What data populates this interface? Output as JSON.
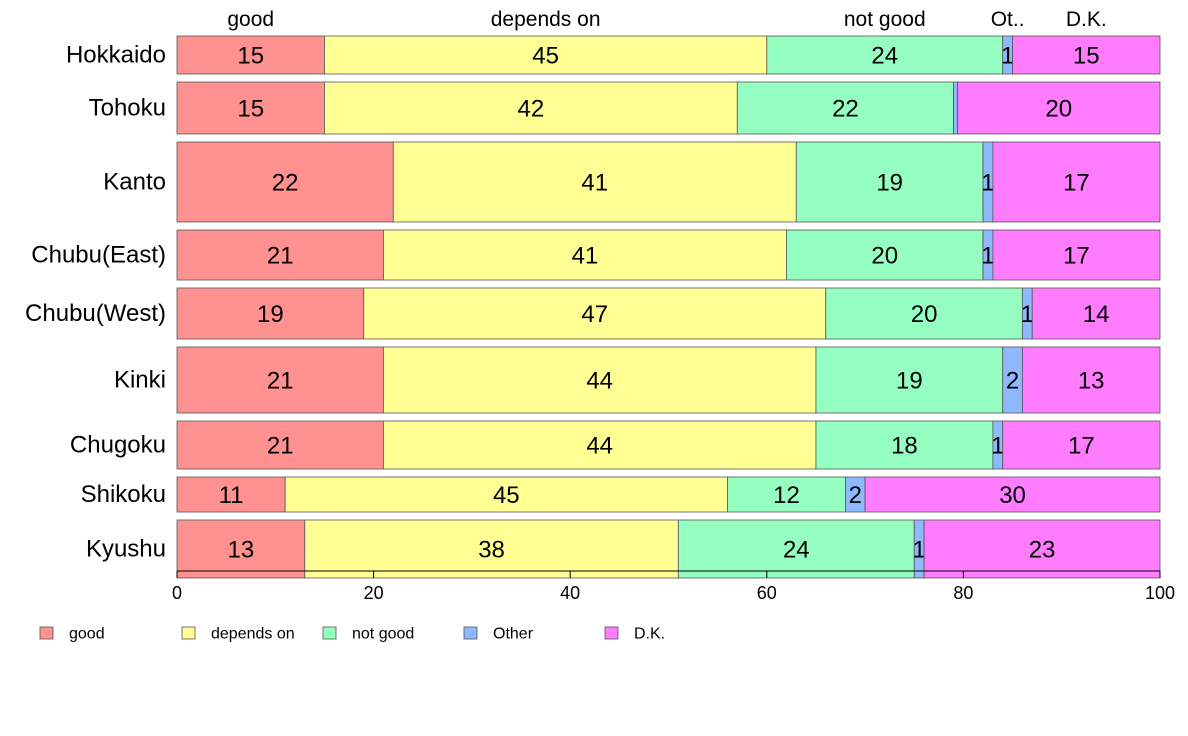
{
  "chart_data": {
    "type": "bar",
    "orientation": "horizontal",
    "stacked": true,
    "categories": [
      "Hokkaido",
      "Tohoku",
      "Kanto",
      "Chubu(East)",
      "Chubu(West)",
      "Kinki",
      "Chugoku",
      "Shikoku",
      "Kyushu"
    ],
    "series": [
      {
        "name": "good",
        "color": "#ff9290",
        "values": [
          15,
          15,
          22,
          21,
          19,
          21,
          21,
          11,
          13
        ]
      },
      {
        "name": "depends on",
        "color": "#ffff94",
        "values": [
          45,
          42,
          41,
          41,
          47,
          44,
          44,
          45,
          38
        ]
      },
      {
        "name": "not good",
        "color": "#94ffc0",
        "values": [
          24,
          22,
          19,
          20,
          20,
          19,
          18,
          12,
          24
        ]
      },
      {
        "name": "Other",
        "color": "#8fb9ff",
        "values": [
          1,
          0.4,
          1,
          1,
          1,
          2,
          1,
          2,
          1
        ]
      },
      {
        "name": "D.K.",
        "color": "#ff7cff",
        "values": [
          15,
          20,
          17,
          17,
          14,
          13,
          17,
          30,
          23
        ]
      }
    ],
    "segment_labels": [
      [
        "15",
        "45",
        "24",
        "1",
        "15"
      ],
      [
        "15",
        "42",
        "22",
        "",
        "20"
      ],
      [
        "22",
        "41",
        "19",
        "1",
        "17"
      ],
      [
        "21",
        "41",
        "20",
        "1",
        "17"
      ],
      [
        "19",
        "47",
        "20",
        "1",
        "14"
      ],
      [
        "21",
        "44",
        "19",
        "2",
        "13"
      ],
      [
        "21",
        "44",
        "18",
        "1",
        "17"
      ],
      [
        "11",
        "45",
        "12",
        "2",
        "30"
      ],
      [
        "13",
        "38",
        "24",
        "1",
        "23"
      ]
    ],
    "relative_row_heights": [
      38,
      52,
      80,
      50,
      51,
      66,
      48,
      35,
      58
    ],
    "top_labels": [
      "good",
      "depends on",
      "not good",
      "Ot..",
      "D.K."
    ],
    "xlim": [
      0,
      100
    ],
    "xticks": [
      0,
      20,
      40,
      60,
      80,
      100
    ],
    "legend": {
      "position": "bottom-left",
      "labels": [
        "good",
        "depends on",
        "not good",
        "Other",
        "D.K."
      ]
    },
    "grid": false
  }
}
